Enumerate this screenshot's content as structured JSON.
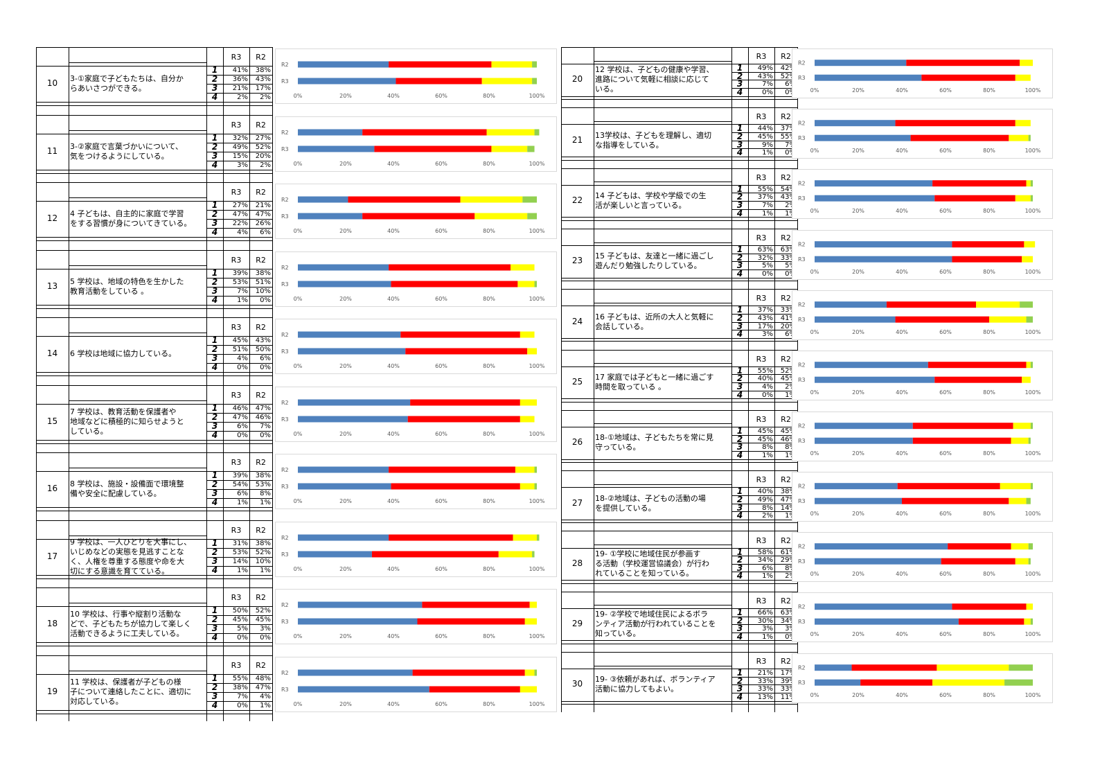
{
  "series_colors": {
    "1": "#4f81bd",
    "2": "#ff0000",
    "3": "#ffff00",
    "4": "#92d050"
  },
  "header": {
    "r3": "R3",
    "r2": "R2"
  },
  "row_labels": [
    "1",
    "2",
    "3",
    "4"
  ],
  "ticks": [
    "0%",
    "20%",
    "40%",
    "60%",
    "80%",
    "100%"
  ],
  "items": [
    {
      "no": "10",
      "text": [
        "3-①家庭で子どもたちは、自分か",
        "らあいさつができる。"
      ],
      "r3": [
        "41%",
        "36%",
        "21%",
        "2%"
      ],
      "r2": [
        "38%",
        "43%",
        "17%",
        "2%"
      ]
    },
    {
      "no": "11",
      "text": [
        "3-②家庭で言葉づかいについて、",
        "気をつけるようにしている。"
      ],
      "r3": [
        "32%",
        "49%",
        "15%",
        "3%"
      ],
      "r2": [
        "27%",
        "52%",
        "20%",
        "2%"
      ]
    },
    {
      "no": "12",
      "text": [
        "4 子どもは、自主的に家庭で学習",
        "をする習慣が身についてきている。"
      ],
      "r3": [
        "27%",
        "47%",
        "22%",
        "4%"
      ],
      "r2": [
        "21%",
        "47%",
        "26%",
        "6%"
      ]
    },
    {
      "no": "13",
      "text": [
        "5 学校は、地域の特色を生かした",
        "教育活動をしている 。"
      ],
      "r3": [
        "39%",
        "53%",
        "7%",
        "1%"
      ],
      "r2": [
        "38%",
        "51%",
        "10%",
        "0%"
      ]
    },
    {
      "no": "14",
      "text": [
        "6 学校は地域に協力している。"
      ],
      "r3": [
        "45%",
        "51%",
        "4%",
        "0%"
      ],
      "r2": [
        "43%",
        "50%",
        "6%",
        "0%"
      ]
    },
    {
      "no": "15",
      "text": [
        "7 学校は、教育活動を保護者や",
        "地域などに積極的に知らせようと",
        "している。"
      ],
      "r3": [
        "46%",
        "47%",
        "6%",
        "0%"
      ],
      "r2": [
        "47%",
        "46%",
        "7%",
        "0%"
      ]
    },
    {
      "no": "16",
      "text": [
        "8 学校は、施設・設備面で環境整",
        "備や安全に配慮している。"
      ],
      "r3": [
        "39%",
        "54%",
        "6%",
        "1%"
      ],
      "r2": [
        "38%",
        "53%",
        "8%",
        "1%"
      ]
    },
    {
      "no": "17",
      "text": [
        "9 学校は、一人ひとりを大事にし、",
        "いじめなどの実態を見逃すことな",
        "く、人権を尊重する態度や命を大",
        "切にする意識を育てている。"
      ],
      "r3": [
        "31%",
        "53%",
        "14%",
        "1%"
      ],
      "r2": [
        "38%",
        "52%",
        "10%",
        "1%"
      ]
    },
    {
      "no": "18",
      "text": [
        "10 学校は、行事や縦割り活動な",
        "どで、子どもたちが協力して楽しく",
        "活動できるように工夫している。"
      ],
      "r3": [
        "50%",
        "45%",
        "5%",
        "0%"
      ],
      "r2": [
        "52%",
        "45%",
        "3%",
        "0%"
      ]
    },
    {
      "no": "19",
      "text": [
        "11 学校は、保護者が子どもの様",
        "子について連絡したことに、適切に",
        "対応している。"
      ],
      "r3": [
        "55%",
        "38%",
        "7%",
        "0%"
      ],
      "r2": [
        "48%",
        "47%",
        "4%",
        "1%"
      ]
    },
    {
      "no": "20",
      "text": [
        "12 学校は、子どもの健康や学習、",
        "進路について気軽に相談に応じて",
        "いる。"
      ],
      "r3": [
        "49%",
        "43%",
        "7%",
        "0%"
      ],
      "r2": [
        "42%",
        "52%",
        "6%",
        "0%"
      ]
    },
    {
      "no": "21",
      "text": [
        "13学校は、子どもを理解し、適切",
        "な指導をしている。"
      ],
      "r3": [
        "44%",
        "45%",
        "9%",
        "1%"
      ],
      "r2": [
        "37%",
        "55%",
        "7%",
        "0%"
      ]
    },
    {
      "no": "22",
      "text": [
        "14 子どもは、学校や学級での生",
        "活が楽しいと言っている。"
      ],
      "r3": [
        "55%",
        "37%",
        "7%",
        "1%"
      ],
      "r2": [
        "54%",
        "43%",
        "2%",
        "1%"
      ]
    },
    {
      "no": "23",
      "text": [
        "15 子どもは、友達と一緒に過ごし",
        "遊んだり勉強したりしている。"
      ],
      "r3": [
        "63%",
        "32%",
        "5%",
        "0%"
      ],
      "r2": [
        "63%",
        "33%",
        "5%",
        "0%"
      ]
    },
    {
      "no": "24",
      "text": [
        "16 子どもは、近所の大人と気軽に",
        "会話している。"
      ],
      "r3": [
        "37%",
        "43%",
        "17%",
        "3%"
      ],
      "r2": [
        "33%",
        "41%",
        "20%",
        "6%"
      ]
    },
    {
      "no": "25",
      "text": [
        "17 家庭では子どもと一緒に過ごす",
        "時間を取っている 。"
      ],
      "r3": [
        "55%",
        "40%",
        "4%",
        "0%"
      ],
      "r2": [
        "52%",
        "45%",
        "2%",
        "1%"
      ]
    },
    {
      "no": "26",
      "text": [
        "18-①地域は、子どもたちを常に見",
        "守っている。"
      ],
      "r3": [
        "45%",
        "45%",
        "8%",
        "1%"
      ],
      "r2": [
        "45%",
        "46%",
        "8%",
        "1%"
      ]
    },
    {
      "no": "27",
      "text": [
        "18-②地域は、子どもの活動の場",
        "を提供している。"
      ],
      "r3": [
        "40%",
        "49%",
        "8%",
        "2%"
      ],
      "r2": [
        "38%",
        "47%",
        "14%",
        "1%"
      ]
    },
    {
      "no": "28",
      "text": [
        "19- ①学校に地域住民が参画す",
        "る活動（学校運営協議会）が行わ",
        "れていることを知っている。"
      ],
      "r3": [
        "58%",
        "34%",
        "6%",
        "1%"
      ],
      "r2": [
        "61%",
        "29%",
        "8%",
        "2%"
      ]
    },
    {
      "no": "29",
      "text": [
        "19- ②学校で地域住民によるボラ",
        "ンティア活動が行われていることを",
        "知っている。"
      ],
      "r3": [
        "66%",
        "30%",
        "3%",
        "1%"
      ],
      "r2": [
        "63%",
        "34%",
        "3%",
        "0%"
      ]
    },
    {
      "no": "30",
      "text": [
        "19- ③依頼があれば、ボランティア",
        "活動に協力してもよい。"
      ],
      "r3": [
        "21%",
        "33%",
        "33%",
        "13%"
      ],
      "r2": [
        "17%",
        "39%",
        "33%",
        "11%"
      ]
    }
  ],
  "chart_data": {
    "type": "bar",
    "orientation": "horizontal-stacked-100",
    "categories": [
      "R2",
      "R3"
    ],
    "series_names": [
      "1",
      "2",
      "3",
      "4"
    ],
    "xlim": [
      0,
      100
    ],
    "charts": [
      {
        "item": "10",
        "R3": [
          41,
          36,
          21,
          2
        ],
        "R2": [
          38,
          43,
          17,
          2
        ]
      },
      {
        "item": "11",
        "R3": [
          32,
          49,
          15,
          3
        ],
        "R2": [
          27,
          52,
          20,
          2
        ]
      },
      {
        "item": "12",
        "R3": [
          27,
          47,
          22,
          4
        ],
        "R2": [
          21,
          47,
          26,
          6
        ]
      },
      {
        "item": "13",
        "R3": [
          39,
          53,
          7,
          1
        ],
        "R2": [
          38,
          51,
          10,
          0
        ]
      },
      {
        "item": "14",
        "R3": [
          45,
          51,
          4,
          0
        ],
        "R2": [
          43,
          50,
          6,
          0
        ]
      },
      {
        "item": "15",
        "R3": [
          46,
          47,
          6,
          0
        ],
        "R2": [
          47,
          46,
          7,
          0
        ]
      },
      {
        "item": "16",
        "R3": [
          39,
          54,
          6,
          1
        ],
        "R2": [
          38,
          53,
          8,
          1
        ]
      },
      {
        "item": "17",
        "R3": [
          31,
          53,
          14,
          1
        ],
        "R2": [
          38,
          52,
          10,
          1
        ]
      },
      {
        "item": "18",
        "R3": [
          50,
          45,
          5,
          0
        ],
        "R2": [
          52,
          45,
          3,
          0
        ]
      },
      {
        "item": "19",
        "R3": [
          55,
          38,
          7,
          0
        ],
        "R2": [
          48,
          47,
          4,
          1
        ]
      },
      {
        "item": "20",
        "R3": [
          49,
          43,
          7,
          0
        ],
        "R2": [
          42,
          52,
          6,
          0
        ]
      },
      {
        "item": "21",
        "R3": [
          44,
          45,
          9,
          1
        ],
        "R2": [
          37,
          55,
          7,
          0
        ]
      },
      {
        "item": "22",
        "R3": [
          55,
          37,
          7,
          1
        ],
        "R2": [
          54,
          43,
          2,
          1
        ]
      },
      {
        "item": "23",
        "R3": [
          63,
          32,
          5,
          0
        ],
        "R2": [
          63,
          33,
          5,
          0
        ]
      },
      {
        "item": "24",
        "R3": [
          37,
          43,
          17,
          3
        ],
        "R2": [
          33,
          41,
          20,
          6
        ]
      },
      {
        "item": "25",
        "R3": [
          55,
          40,
          4,
          0
        ],
        "R2": [
          52,
          45,
          2,
          1
        ]
      },
      {
        "item": "26",
        "R3": [
          45,
          45,
          8,
          1
        ],
        "R2": [
          45,
          46,
          8,
          1
        ]
      },
      {
        "item": "27",
        "R3": [
          40,
          49,
          8,
          2
        ],
        "R2": [
          38,
          47,
          14,
          1
        ]
      },
      {
        "item": "28",
        "R3": [
          58,
          34,
          6,
          1
        ],
        "R2": [
          61,
          29,
          8,
          2
        ]
      },
      {
        "item": "29",
        "R3": [
          66,
          30,
          3,
          1
        ],
        "R2": [
          63,
          34,
          3,
          0
        ]
      },
      {
        "item": "30",
        "R3": [
          21,
          33,
          33,
          13
        ],
        "R2": [
          17,
          39,
          33,
          11
        ]
      }
    ]
  }
}
